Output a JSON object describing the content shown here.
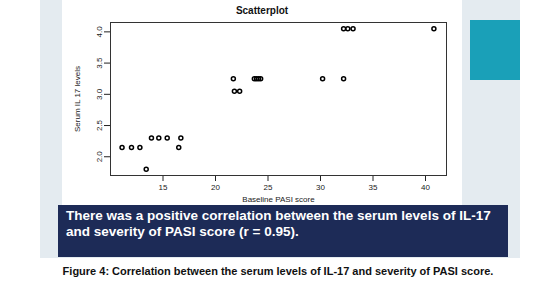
{
  "chart_data": {
    "type": "scatter",
    "title": "Scatterplot",
    "x_label": "Baseline PASI score",
    "y_label": "Serum IL 17 levels",
    "x": [
      11.1,
      12.0,
      12.8,
      13.4,
      13.9,
      14.6,
      15.4,
      16.5,
      16.7,
      21.7,
      21.8,
      22.3,
      23.7,
      23.9,
      24.1,
      24.3,
      30.2,
      32.2,
      32.2,
      32.6,
      33.1,
      40.8
    ],
    "values": [
      2.15,
      2.15,
      2.15,
      1.8,
      2.3,
      2.3,
      2.3,
      2.15,
      2.3,
      3.25,
      3.05,
      3.05,
      3.25,
      3.25,
      3.25,
      3.25,
      3.25,
      3.25,
      4.05,
      4.05,
      4.05,
      4.05
    ],
    "xlim": [
      10,
      42
    ],
    "ylim": [
      1.7,
      4.15
    ],
    "xticks": [
      15,
      20,
      25,
      30,
      35,
      40
    ],
    "yticks": [
      {
        "value": 2,
        "label": "2.0"
      },
      {
        "value": 2.5,
        "label": "2.5"
      },
      {
        "value": 3,
        "label": "3.0"
      },
      {
        "value": 3.5,
        "label": "3.5"
      },
      {
        "value": 4,
        "label": "4.0"
      }
    ],
    "marker": "circle",
    "color": "#000000",
    "annotations": [
      "There was a positive correlation between the serum levels of IL-17 and severity of PASI score (r = 0.95)."
    ],
    "caption": "Figure 4: Correlation between the serum levels of IL-17 and severity of PASI score."
  }
}
